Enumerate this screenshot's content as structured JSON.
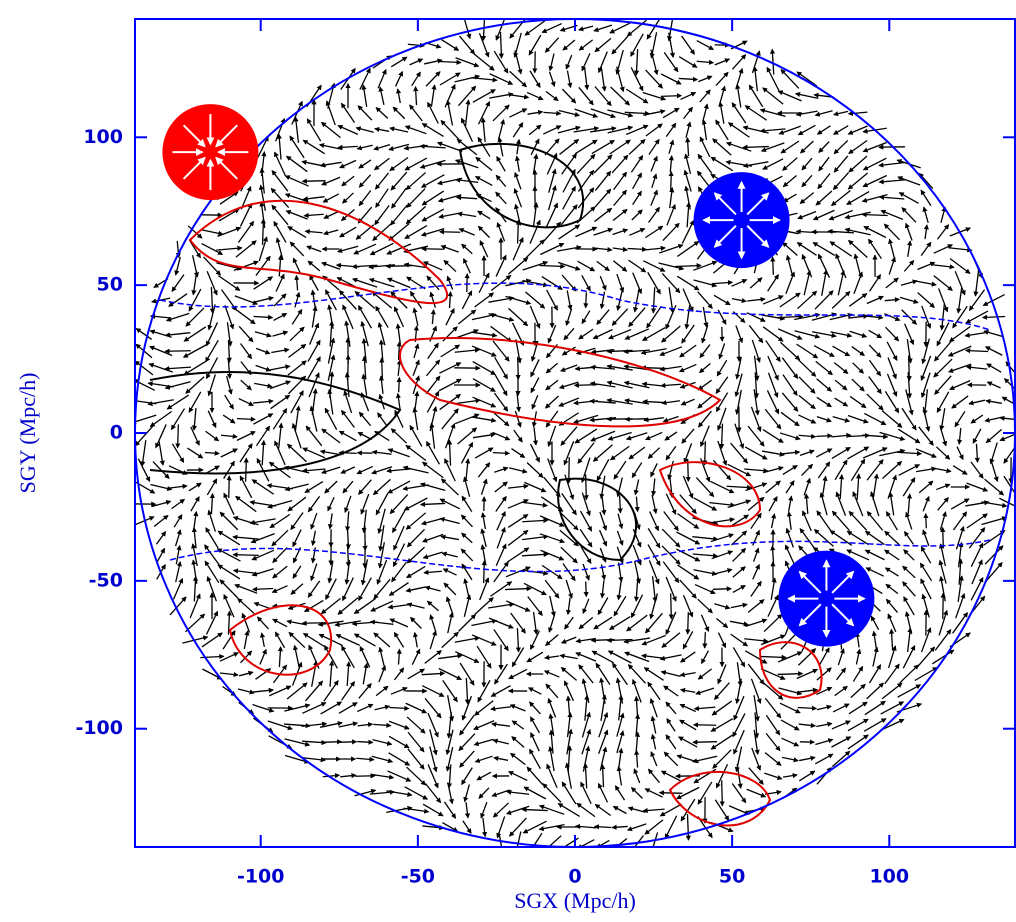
{
  "chart_data": {
    "type": "scatter",
    "x_label": "SGX (Mpc/h)",
    "y_label": "SGY (Mpc/h)",
    "xlim": [
      -140,
      140
    ],
    "ylim": [
      -140,
      140
    ],
    "xticks": [
      -100,
      -50,
      0,
      50,
      100
    ],
    "yticks": [
      -100,
      -50,
      0,
      50,
      100
    ],
    "axis_color": "#0000ff",
    "series": [
      {
        "color": "#ff0000",
        "arrow_direction": "inward",
        "x": [
          -116
        ],
        "values": [
          95
        ]
      },
      {
        "color": "#0000ff",
        "arrow_direction": "outward",
        "x": [
          53,
          80
        ],
        "values": [
          72,
          -56
        ]
      }
    ]
  }
}
